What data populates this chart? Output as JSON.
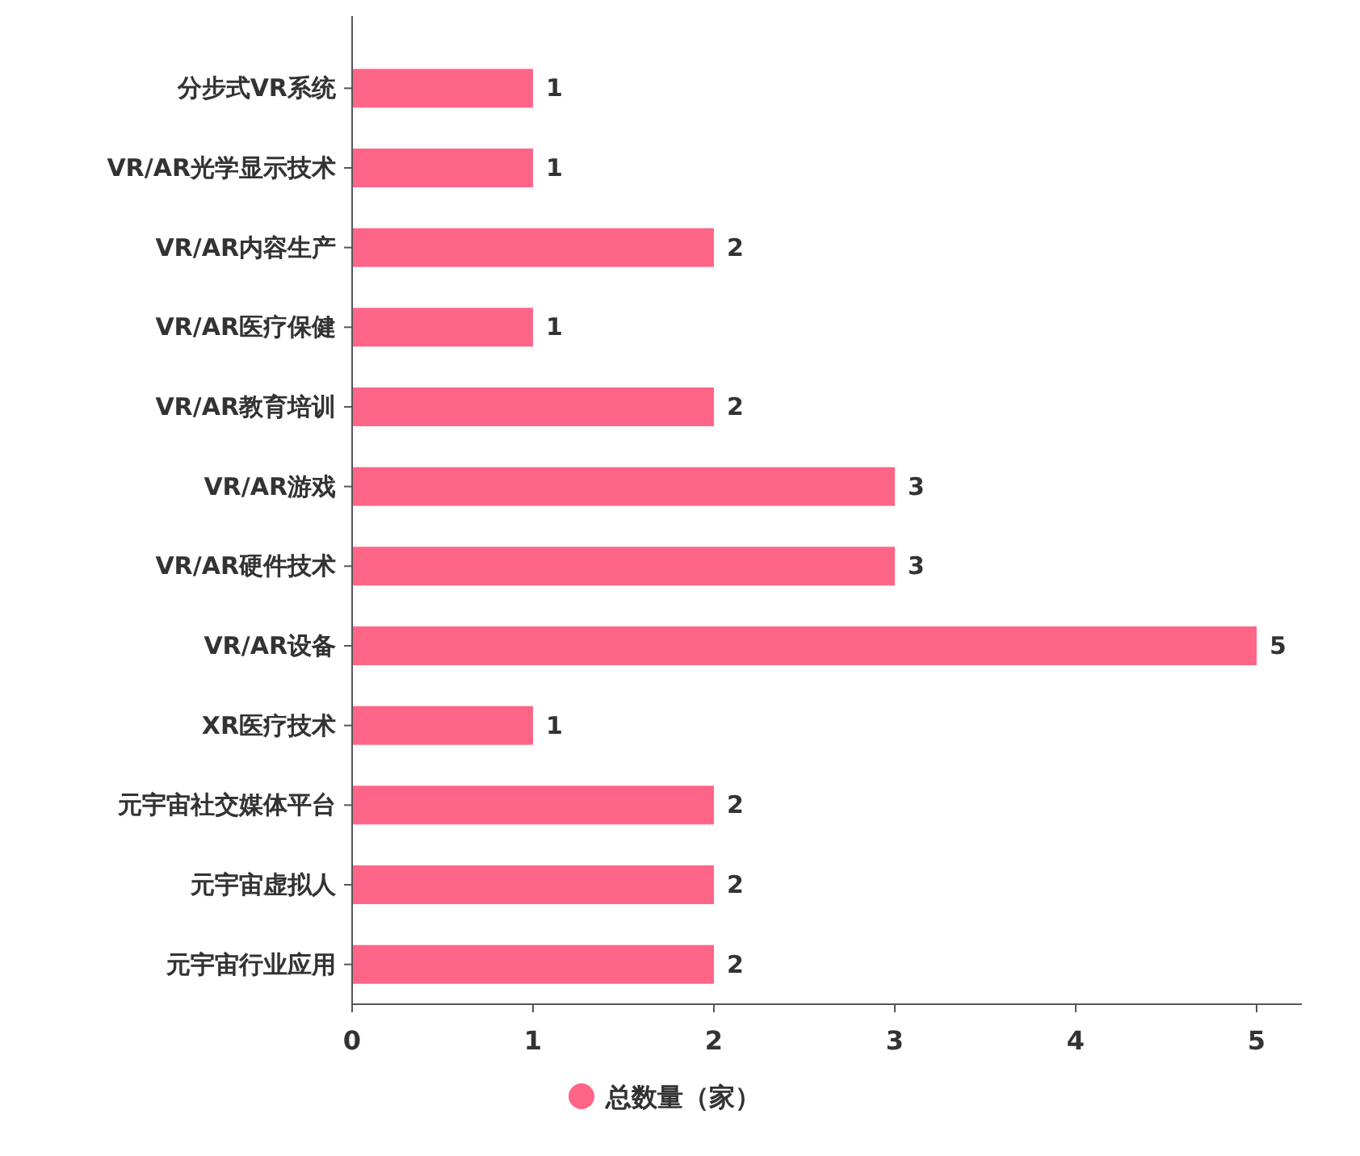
{
  "chart_data": {
    "type": "bar",
    "orientation": "horizontal",
    "categories": [
      "分步式VR系统",
      "VR/AR光学显示技术",
      "VR/AR内容生产",
      "VR/AR医疗保健",
      "VR/AR教育培训",
      "VR/AR游戏",
      "VR/AR硬件技术",
      "VR/AR设备",
      "XR医疗技术",
      "元宇宙社交媒体平台",
      "元宇宙虚拟人",
      "元宇宙行业应用"
    ],
    "series": [
      {
        "name": "总数量（家）",
        "color": "#fe6586",
        "values": [
          1,
          1,
          2,
          1,
          2,
          3,
          3,
          5,
          1,
          2,
          2,
          2
        ]
      }
    ],
    "xlim": [
      0,
      5.25
    ],
    "xticks": [
      0,
      1,
      2,
      3,
      4,
      5
    ],
    "data_labels": true,
    "legend": "bottom",
    "grid": false
  }
}
